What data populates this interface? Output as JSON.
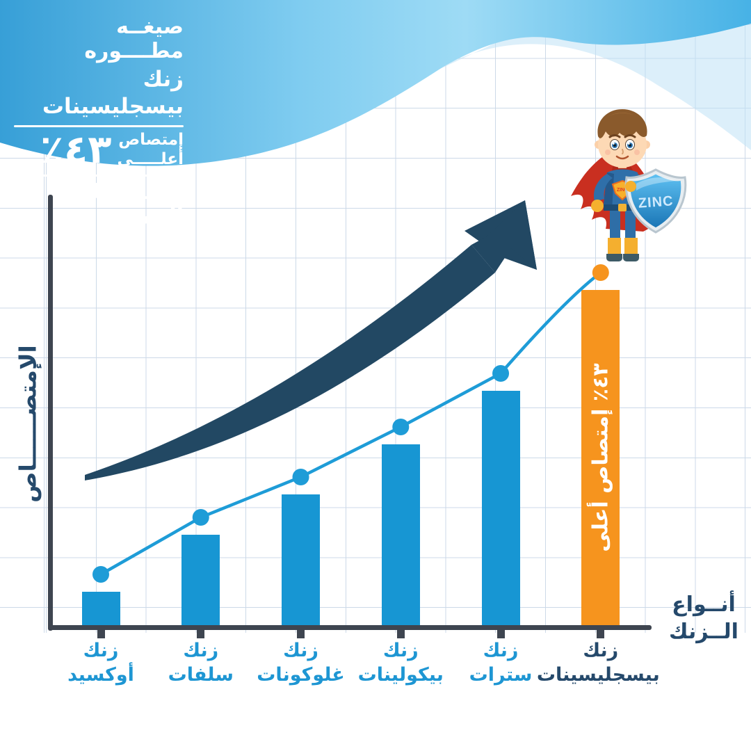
{
  "header": {
    "line1": "صيغــه مطــــوره",
    "line2": "زنك بيسجليسينات",
    "percent_big": "٤٣٪",
    "percent_word_top": "إمتصاص",
    "percent_word_bottom": "أعلـــــى",
    "line4": "لطيف على المعدة"
  },
  "chart_data": {
    "type": "bar",
    "subtype": "bars with marker line overlay and growth arrow",
    "categories": [
      "زنك أوكسيد",
      "زنك سلفات",
      "زنك غلوكونات",
      "زنك بيكولينات",
      "زنك سترات",
      "زنك بيسجليسينات"
    ],
    "values": [
      10,
      27,
      39,
      54,
      70,
      100
    ],
    "values_note": "relative absorption as % of zinc bisglycinate; no numeric axis shown in the figure",
    "title": "",
    "xlabel": "أنــواع الــزنك",
    "ylabel": "الإمتصــــــاص",
    "ylim": [
      0,
      104
    ],
    "grid": true,
    "legend": null,
    "highlight_index": 5,
    "highlight_bar_label": "٤٣٪ إمتصاص أعلى",
    "colors": {
      "bar": "#1796d3",
      "highlight": "#f6941e",
      "line": "#1e9cd7",
      "axis": "#3e4550",
      "label": "#1e96d3",
      "label_highlight": "#25496b",
      "arrow": "#224863"
    }
  },
  "axis": {
    "xlabel_line1": "أنــواع",
    "xlabel_line2": "الــزنك"
  },
  "character": {
    "shield_text": "ZINC",
    "badge_text": "ZINC"
  }
}
